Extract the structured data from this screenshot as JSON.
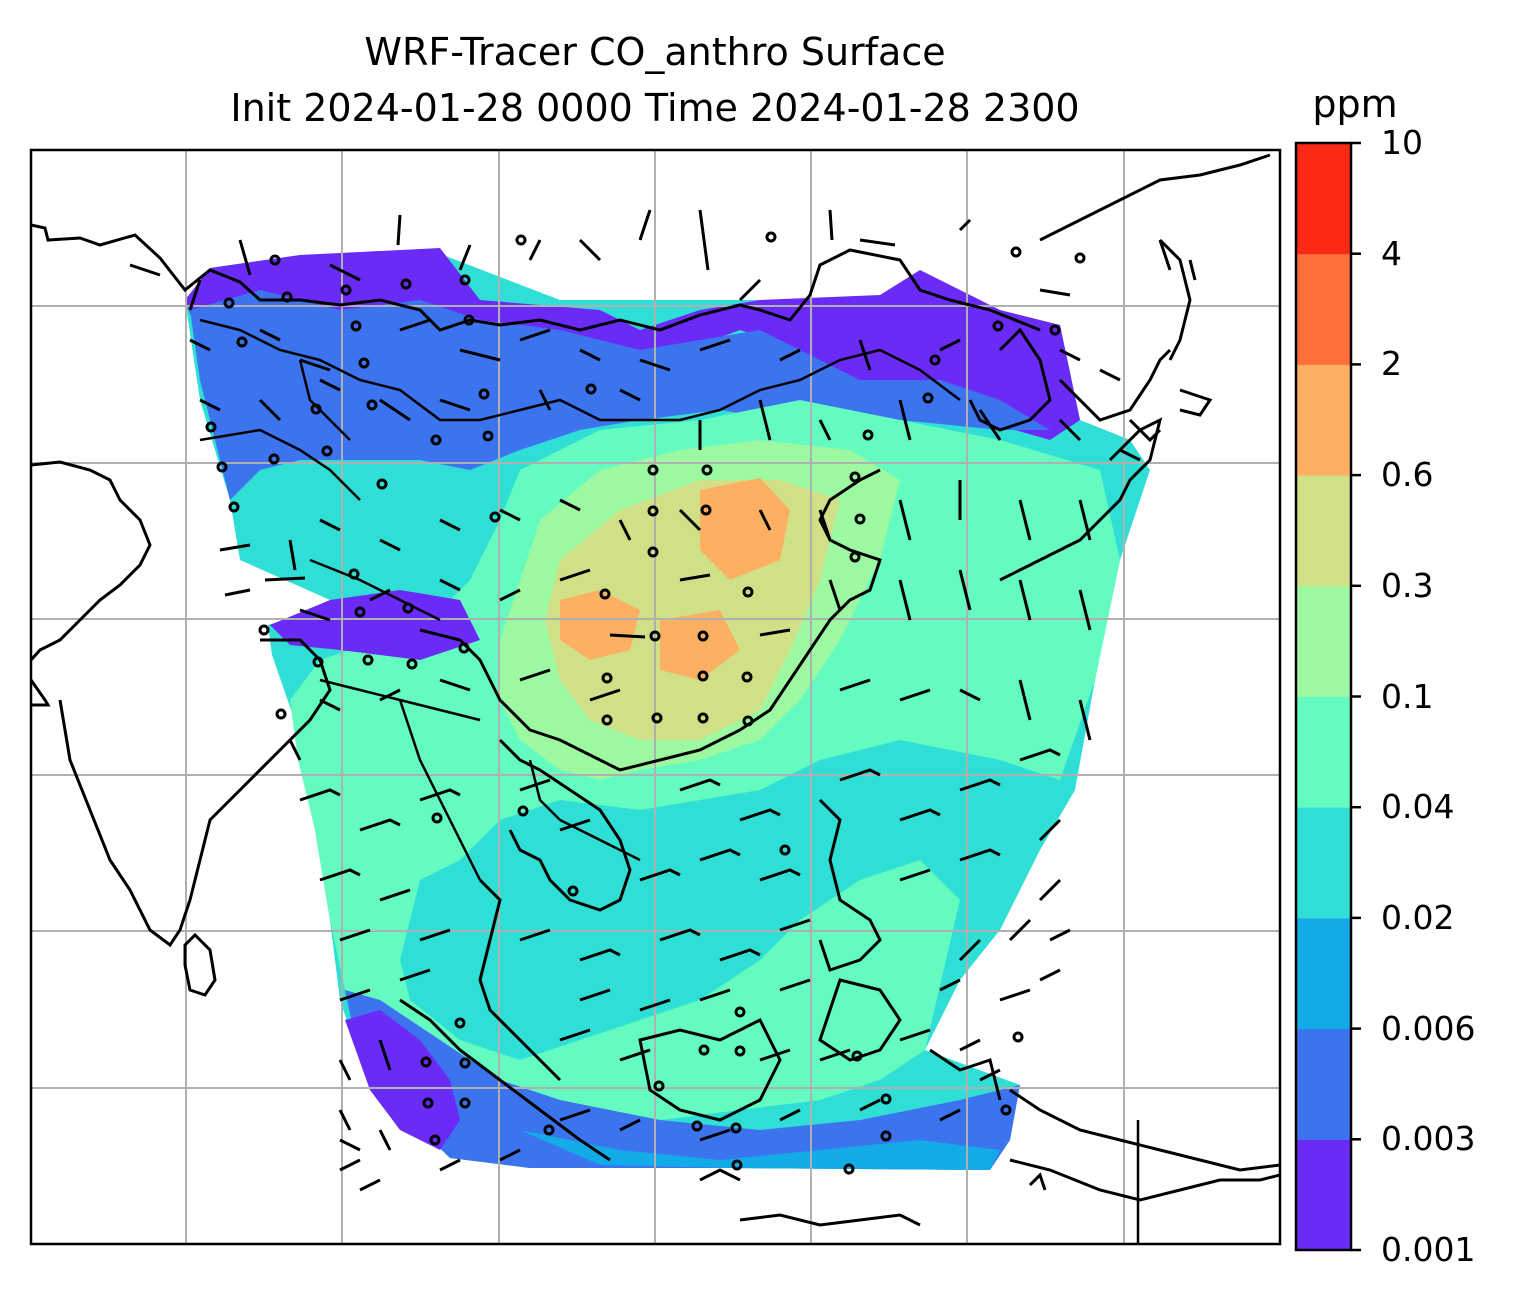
{
  "title": {
    "line1": "WRF-Tracer CO_anthro Surface",
    "line2": "Init 2024-01-28 0000 Time 2024-01-28 2300"
  },
  "colorbar": {
    "unit": "ppm",
    "tick_labels": [
      "0.001",
      "0.003",
      "0.006",
      "0.02",
      "0.04",
      "0.1",
      "0.3",
      "0.6",
      "2",
      "4",
      "10"
    ],
    "colors": [
      "#6b2bf6",
      "#3b74ee",
      "#12abe8",
      "#2fdfd6",
      "#63fbbf",
      "#9cf9a1",
      "#cfe086",
      "#fdb062",
      "#fe6f3c",
      "#ff2a16"
    ]
  },
  "map": {
    "gridlines": "on",
    "grid_color": "#b0b0b0",
    "features": [
      "coastlines",
      "country-borders",
      "wind-barbs",
      "calm-wind-circles",
      "co-concentration-fill"
    ]
  }
}
